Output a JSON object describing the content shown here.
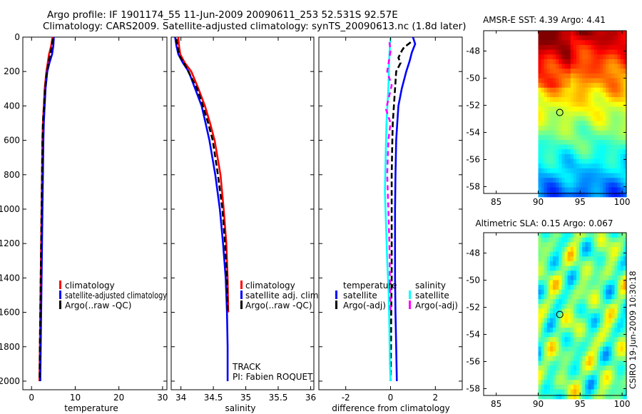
{
  "header": {
    "line1": "Argo profile: IF 1901174_55 11-Jun-2009 20090611_253 52.531S 92.57E",
    "line2": "Climatology: CARS2009. Satellite-adjusted climatology: synTS_20090613.nc (1.8d later)"
  },
  "colors": {
    "climatology": "#ff0000",
    "satellite": "#0000ff",
    "argo": "#000000",
    "diff_satellite_salinity": "#00ffff",
    "diff_argo_salinity": "#ff00ff"
  },
  "chart_data": [
    {
      "type": "line",
      "panel": "temperature",
      "xlabel": "temperature",
      "ylabel": "",
      "xlim": [
        -2,
        31
      ],
      "ylim": [
        2050,
        0
      ],
      "xticks": [
        "0",
        "10",
        "20",
        "30"
      ],
      "yticks": [
        "0",
        "200",
        "400",
        "600",
        "800",
        "1000",
        "1200",
        "1400",
        "1600",
        "1800",
        "2000"
      ],
      "legend": [
        "climatology",
        "satellite-adjusted climatology",
        "Argo(..raw -QC)"
      ],
      "series": [
        {
          "name": "climatology",
          "color": "#ff0000",
          "points": [
            [
              4.8,
              0
            ],
            [
              4.5,
              50
            ],
            [
              4.0,
              100
            ],
            [
              3.4,
              200
            ],
            [
              3.0,
              300
            ],
            [
              2.8,
              400
            ],
            [
              2.6,
              500
            ],
            [
              2.5,
              600
            ],
            [
              2.4,
              800
            ],
            [
              2.3,
              1000
            ],
            [
              2.2,
              1200
            ],
            [
              2.1,
              1400
            ],
            [
              2.0,
              1600
            ],
            [
              1.9,
              1800
            ],
            [
              1.8,
              2000
            ]
          ]
        },
        {
          "name": "satellite-adjusted climatology",
          "color": "#0000ff",
          "points": [
            [
              5.1,
              0
            ],
            [
              5.0,
              50
            ],
            [
              4.7,
              100
            ],
            [
              4.1,
              150
            ],
            [
              3.6,
              200
            ],
            [
              3.2,
              300
            ],
            [
              3.0,
              400
            ],
            [
              2.8,
              500
            ],
            [
              2.7,
              600
            ],
            [
              2.6,
              800
            ],
            [
              2.5,
              1000
            ],
            [
              2.4,
              1200
            ],
            [
              2.3,
              1400
            ],
            [
              2.2,
              1600
            ],
            [
              2.1,
              1800
            ],
            [
              2.0,
              2000
            ]
          ]
        },
        {
          "name": "Argo(..raw -QC)",
          "color": "#000000",
          "points": [
            [
              4.9,
              10
            ],
            [
              4.6,
              60
            ],
            [
              4.2,
              110
            ],
            [
              3.8,
              160
            ],
            [
              3.4,
              220
            ],
            [
              3.1,
              300
            ],
            [
              2.9,
              400
            ],
            [
              2.7,
              450
            ],
            [
              2.6,
              500
            ],
            [
              2.5,
              600
            ],
            [
              2.4,
              800
            ],
            [
              2.3,
              1000
            ],
            [
              2.2,
              1200
            ],
            [
              2.1,
              1400
            ],
            [
              2.0,
              1600
            ],
            [
              1.9,
              1800
            ],
            [
              1.85,
              2000
            ]
          ]
        }
      ]
    },
    {
      "type": "line",
      "panel": "salinity",
      "xlabel": "salinity",
      "ylabel": "",
      "xlim": [
        33.85,
        36.05
      ],
      "ylim": [
        2050,
        0
      ],
      "xticks": [
        "34",
        "34.5",
        "35",
        "35.5",
        "36"
      ],
      "legend": [
        "climatology",
        "satellite adj. clim.",
        "Argo(..raw -QC)"
      ],
      "annotations": [
        "TRACK",
        "PI: Fabien ROQUET"
      ],
      "series": [
        {
          "name": "climatology",
          "color": "#ff0000",
          "points": [
            [
              33.96,
              0
            ],
            [
              33.97,
              50
            ],
            [
              33.99,
              100
            ],
            [
              34.06,
              150
            ],
            [
              34.16,
              200
            ],
            [
              34.27,
              300
            ],
            [
              34.37,
              400
            ],
            [
              34.45,
              500
            ],
            [
              34.52,
              600
            ],
            [
              34.61,
              800
            ],
            [
              34.66,
              1000
            ],
            [
              34.7,
              1200
            ],
            [
              34.72,
              1400
            ],
            [
              34.73,
              1600
            ]
          ]
        },
        {
          "name": "satellite adj. clim.",
          "color": "#0000ff",
          "points": [
            [
              33.91,
              0
            ],
            [
              33.93,
              50
            ],
            [
              33.96,
              100
            ],
            [
              34.03,
              150
            ],
            [
              34.12,
              200
            ],
            [
              34.22,
              300
            ],
            [
              34.32,
              400
            ],
            [
              34.38,
              500
            ],
            [
              34.44,
              600
            ],
            [
              34.53,
              800
            ],
            [
              34.6,
              1000
            ],
            [
              34.65,
              1200
            ],
            [
              34.69,
              1400
            ],
            [
              34.71,
              1600
            ],
            [
              34.72,
              1800
            ],
            [
              34.72,
              2000
            ]
          ]
        },
        {
          "name": "Argo(..raw -QC)",
          "color": "#000000",
          "points": [
            [
              33.93,
              10
            ],
            [
              33.95,
              60
            ],
            [
              33.98,
              110
            ],
            [
              34.06,
              160
            ],
            [
              34.14,
              220
            ],
            [
              34.25,
              300
            ],
            [
              34.34,
              400
            ],
            [
              34.42,
              500
            ],
            [
              34.49,
              600
            ],
            [
              34.57,
              800
            ],
            [
              34.64,
              1000
            ],
            [
              34.68,
              1200
            ],
            [
              34.71,
              1400
            ],
            [
              34.72,
              1600
            ]
          ]
        }
      ]
    },
    {
      "type": "line",
      "panel": "difference",
      "xlabel": "difference from climatology",
      "ylabel": "",
      "xlim": [
        -3.2,
        3.2
      ],
      "ylim": [
        2050,
        0
      ],
      "xticks": [
        "-2",
        "0",
        "2"
      ],
      "legend_headers": [
        "temperature",
        "salinity"
      ],
      "legend": [
        "satellite",
        "Argo(-adj)",
        "satellite",
        "Argo(-adj)"
      ],
      "series": [
        {
          "name": "temperature satellite",
          "color": "#0000ff",
          "points": [
            [
              1.0,
              0
            ],
            [
              1.1,
              40
            ],
            [
              0.95,
              90
            ],
            [
              0.85,
              140
            ],
            [
              0.7,
              200
            ],
            [
              0.5,
              300
            ],
            [
              0.35,
              400
            ],
            [
              0.3,
              500
            ],
            [
              0.25,
              600
            ],
            [
              0.22,
              800
            ],
            [
              0.2,
              1000
            ],
            [
              0.2,
              1200
            ],
            [
              0.2,
              1400
            ],
            [
              0.22,
              1600
            ],
            [
              0.25,
              1800
            ],
            [
              0.28,
              2000
            ]
          ]
        },
        {
          "name": "temperature Argo(-adj)",
          "color": "#000000",
          "points": [
            [
              0.9,
              30
            ],
            [
              0.6,
              60
            ],
            [
              0.5,
              80
            ],
            [
              0.35,
              120
            ],
            [
              0.45,
              150
            ],
            [
              0.25,
              200
            ],
            [
              0.2,
              300
            ],
            [
              0.15,
              400
            ],
            [
              0.1,
              500
            ],
            [
              0.08,
              600
            ],
            [
              0.05,
              800
            ],
            [
              0.05,
              1000
            ],
            [
              0.05,
              1200
            ],
            [
              0.05,
              1400
            ],
            [
              0.03,
              1600
            ],
            [
              0.02,
              1800
            ],
            [
              0.0,
              2000
            ]
          ]
        },
        {
          "name": "salinity satellite",
          "color": "#00ffff",
          "points": [
            [
              0.0,
              0
            ],
            [
              -0.05,
              100
            ],
            [
              -0.1,
              300
            ],
            [
              -0.18,
              500
            ],
            [
              -0.22,
              700
            ],
            [
              -0.25,
              900
            ],
            [
              -0.2,
              1100
            ],
            [
              -0.15,
              1300
            ],
            [
              -0.08,
              1500
            ],
            [
              -0.05,
              1700
            ],
            [
              -0.03,
              1900
            ],
            [
              0.0,
              2000
            ]
          ]
        },
        {
          "name": "salinity Argo(-adj)",
          "color": "#ff00ff",
          "points": [
            [
              -0.05,
              30
            ],
            [
              0.0,
              80
            ],
            [
              -0.15,
              200
            ],
            [
              0.05,
              280
            ],
            [
              -0.2,
              420
            ],
            [
              0.0,
              500
            ],
            [
              -0.1,
              600
            ],
            [
              -0.15,
              800
            ],
            [
              -0.1,
              1000
            ],
            [
              -0.05,
              1200
            ],
            [
              -0.03,
              1400
            ],
            [
              0.0,
              1600
            ]
          ]
        }
      ]
    },
    {
      "type": "heatmap",
      "panel": "sst-map",
      "title": "AMSR-E SST: 4.39 Argo: 4.41",
      "xlim": [
        83.5,
        100.5
      ],
      "ylim": [
        -58.5,
        -46.5
      ],
      "xticks": [
        "85",
        "90",
        "95",
        "100"
      ],
      "yticks": [
        "-48",
        "-50",
        "-52",
        "-54",
        "-56",
        "-58"
      ],
      "data_xlim": [
        90,
        100.5
      ],
      "argo_position": [
        92.57,
        -52.531
      ]
    },
    {
      "type": "heatmap",
      "panel": "sla-map",
      "title": "Altimetric SLA: 0.15 Argo: 0.067",
      "xlim": [
        83.5,
        100.5
      ],
      "ylim": [
        -58.5,
        -46.5
      ],
      "xticks": [
        "85",
        "90",
        "95",
        "100"
      ],
      "yticks": [
        "-48",
        "-50",
        "-52",
        "-54",
        "-56",
        "-58"
      ],
      "data_xlim": [
        90,
        100.5
      ],
      "argo_position": [
        92.57,
        -52.531
      ]
    }
  ],
  "stamp": "CSIRO 19-Jun-2009 10:30:18"
}
